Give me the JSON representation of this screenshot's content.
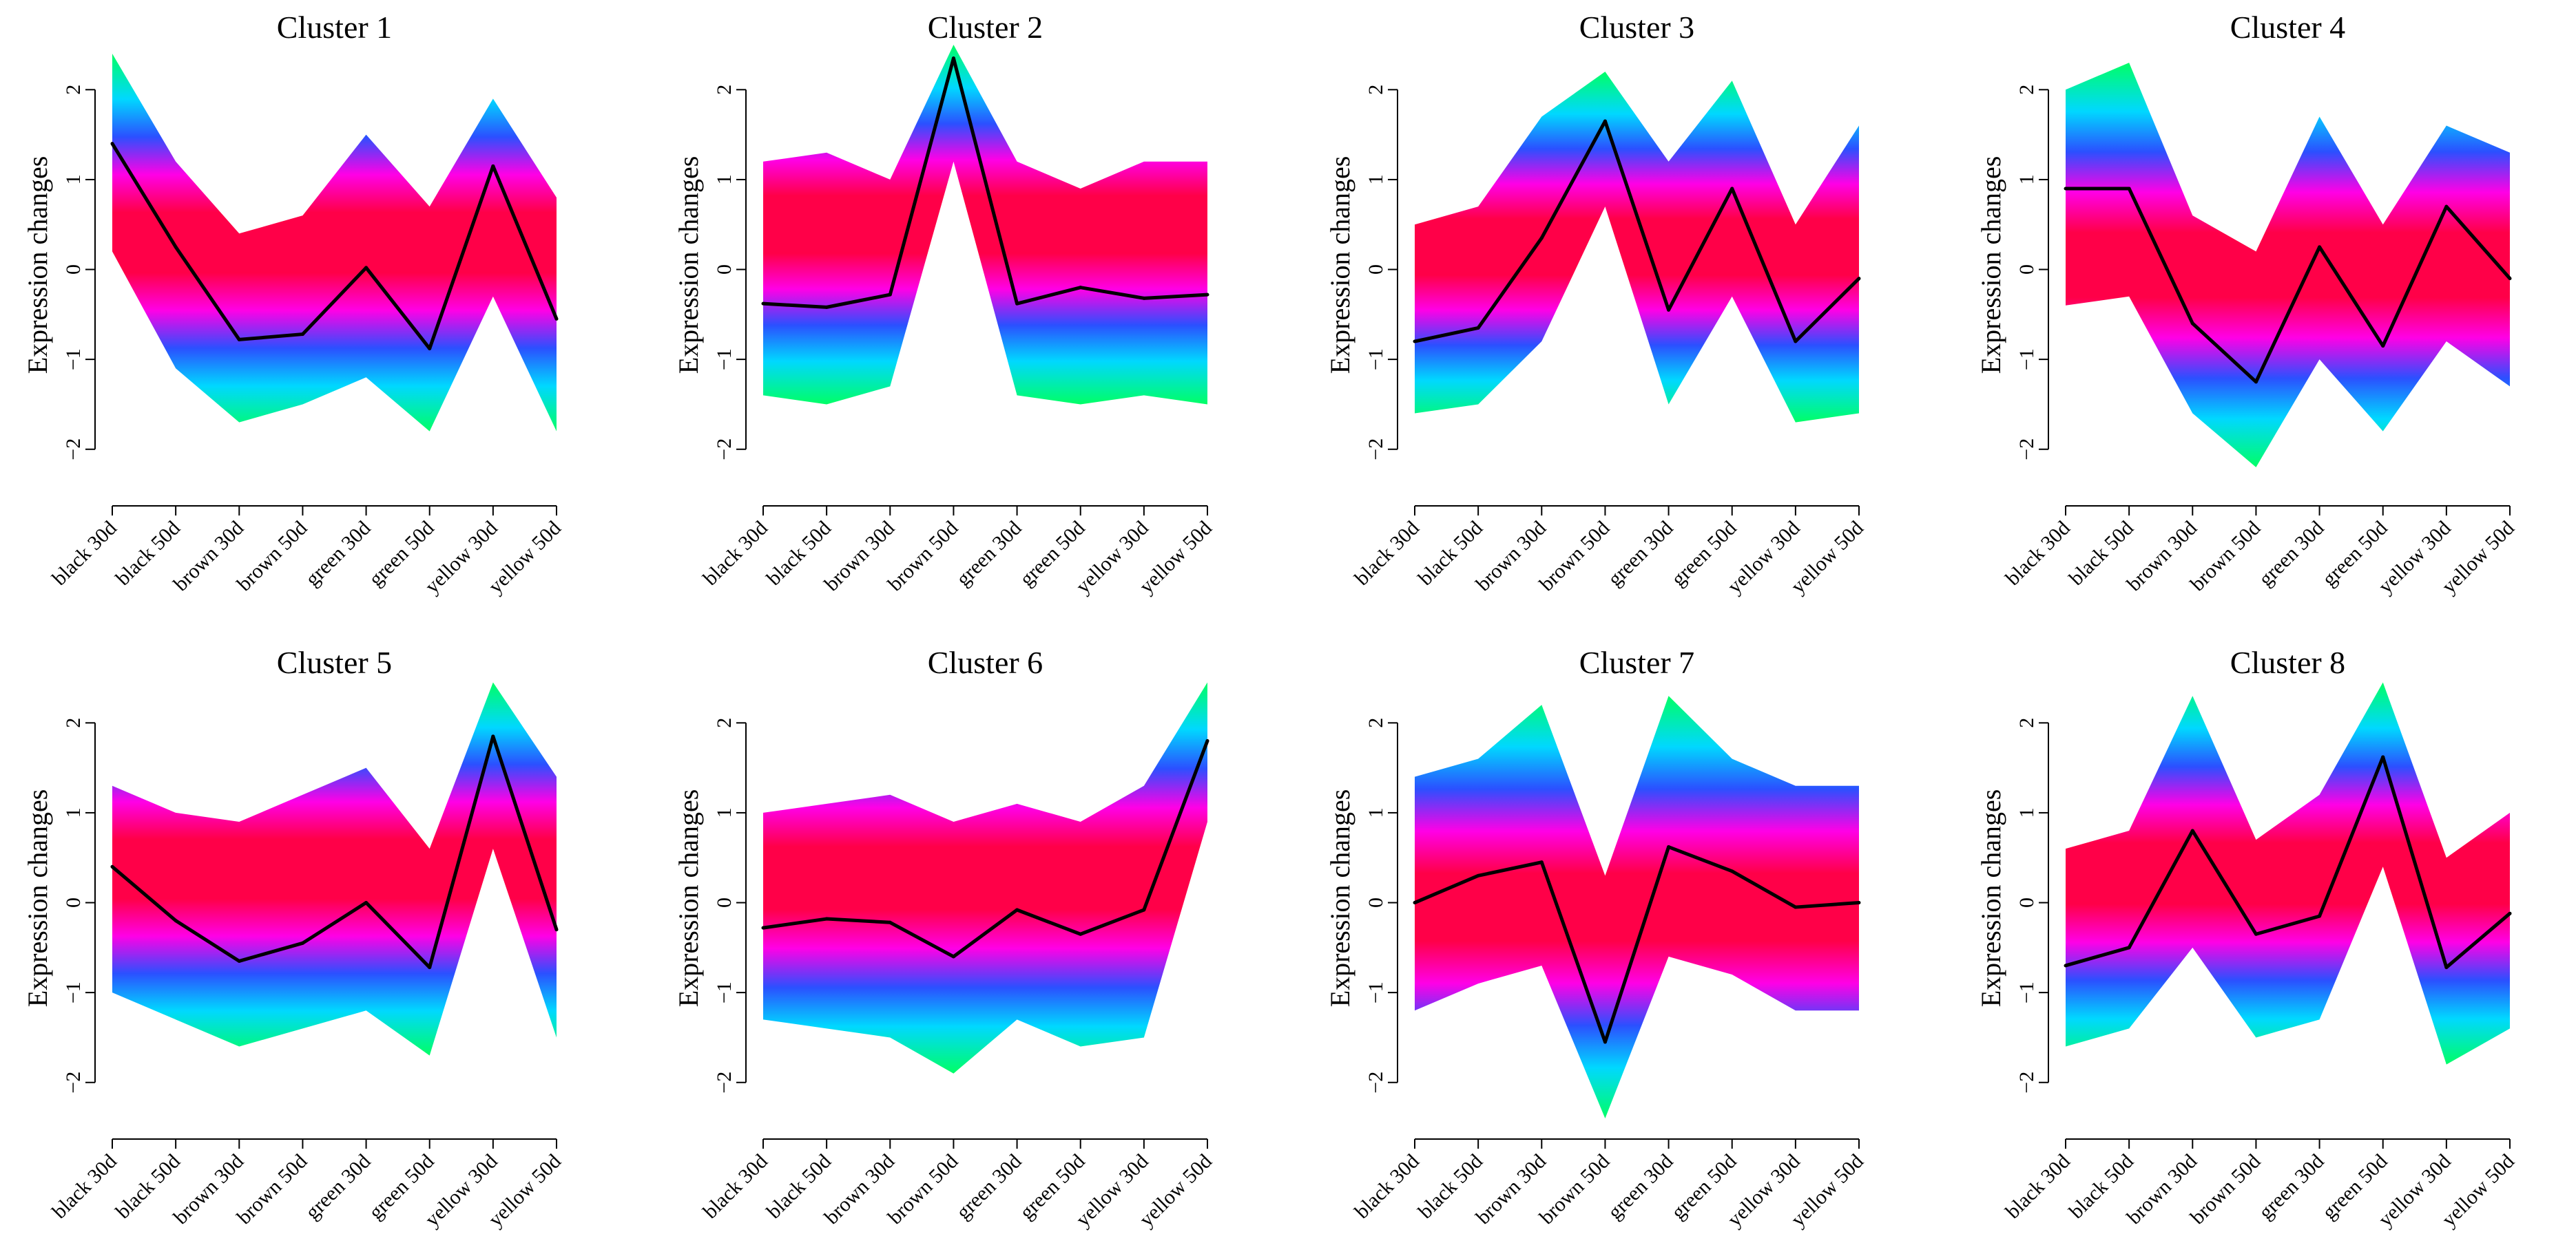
{
  "chart_data": [
    {
      "type": "line",
      "title": "Cluster 1",
      "ylabel": "Expression changes",
      "categories": [
        "black 30d",
        "black 50d",
        "brown 30d",
        "brown 50d",
        "green 30d",
        "green 50d",
        "yellow 30d",
        "yellow 50d"
      ],
      "yticks": [
        "−2",
        "−1",
        "0",
        "1",
        "2"
      ],
      "ylim": [
        -2.4,
        2.5
      ],
      "series": [
        {
          "values": [
            1.4,
            0.25,
            -0.78,
            -0.72,
            0.02,
            -0.88,
            1.15,
            -0.55
          ]
        }
      ],
      "band": {
        "upper": [
          2.4,
          1.2,
          0.4,
          0.6,
          1.5,
          0.7,
          1.9,
          0.8
        ],
        "lower": [
          0.2,
          -1.1,
          -1.7,
          -1.5,
          -1.2,
          -1.8,
          -0.3,
          -1.8
        ]
      }
    },
    {
      "type": "line",
      "title": "Cluster 2",
      "ylabel": "Expression changes",
      "categories": [
        "black 30d",
        "black 50d",
        "brown 30d",
        "brown 50d",
        "green 30d",
        "green 50d",
        "yellow 30d",
        "yellow 50d"
      ],
      "yticks": [
        "−2",
        "−1",
        "0",
        "1",
        "2"
      ],
      "ylim": [
        -2.4,
        2.5
      ],
      "series": [
        {
          "values": [
            -0.38,
            -0.42,
            -0.28,
            2.35,
            -0.38,
            -0.2,
            -0.32,
            -0.28
          ]
        }
      ],
      "band": {
        "upper": [
          1.2,
          1.3,
          1.0,
          2.5,
          1.2,
          0.9,
          1.2,
          1.2
        ],
        "lower": [
          -1.4,
          -1.5,
          -1.3,
          1.2,
          -1.4,
          -1.5,
          -1.4,
          -1.5
        ]
      }
    },
    {
      "type": "line",
      "title": "Cluster 3",
      "ylabel": "Expression changes",
      "categories": [
        "black 30d",
        "black 50d",
        "brown 30d",
        "brown 50d",
        "green 30d",
        "green 50d",
        "yellow 30d",
        "yellow 50d"
      ],
      "yticks": [
        "−2",
        "−1",
        "0",
        "1",
        "2"
      ],
      "ylim": [
        -2.4,
        2.5
      ],
      "series": [
        {
          "values": [
            -0.8,
            -0.65,
            0.35,
            1.65,
            -0.45,
            0.9,
            -0.8,
            -0.1
          ]
        }
      ],
      "band": {
        "upper": [
          0.5,
          0.7,
          1.7,
          2.2,
          1.2,
          2.1,
          0.5,
          1.6
        ],
        "lower": [
          -1.6,
          -1.5,
          -0.8,
          0.7,
          -1.5,
          -0.3,
          -1.7,
          -1.6
        ]
      }
    },
    {
      "type": "line",
      "title": "Cluster 4",
      "ylabel": "Expression changes",
      "categories": [
        "black 30d",
        "black 50d",
        "brown 30d",
        "brown 50d",
        "green 30d",
        "green 50d",
        "yellow 30d",
        "yellow 50d"
      ],
      "yticks": [
        "−2",
        "−1",
        "0",
        "1",
        "2"
      ],
      "ylim": [
        -2.4,
        2.5
      ],
      "series": [
        {
          "values": [
            0.9,
            0.9,
            -0.6,
            -1.25,
            0.25,
            -0.85,
            0.7,
            -0.1
          ]
        }
      ],
      "band": {
        "upper": [
          2.0,
          2.3,
          0.6,
          0.2,
          1.7,
          0.5,
          1.6,
          1.3
        ],
        "lower": [
          -0.4,
          -0.3,
          -1.6,
          -2.2,
          -1.0,
          -1.8,
          -0.8,
          -1.3
        ]
      }
    },
    {
      "type": "line",
      "title": "Cluster 5",
      "ylabel": "Expression changes",
      "categories": [
        "black 30d",
        "black 50d",
        "brown 30d",
        "brown 50d",
        "green 30d",
        "green 50d",
        "yellow 30d",
        "yellow 50d"
      ],
      "yticks": [
        "−2",
        "−1",
        "0",
        "1",
        "2"
      ],
      "ylim": [
        -2.4,
        2.5
      ],
      "series": [
        {
          "values": [
            0.4,
            -0.2,
            -0.65,
            -0.45,
            0.0,
            -0.72,
            1.85,
            -0.3
          ]
        }
      ],
      "band": {
        "upper": [
          1.3,
          1.0,
          0.9,
          1.2,
          1.5,
          0.6,
          2.45,
          1.4
        ],
        "lower": [
          -1.0,
          -1.3,
          -1.6,
          -1.4,
          -1.2,
          -1.7,
          0.6,
          -1.5
        ]
      }
    },
    {
      "type": "line",
      "title": "Cluster 6",
      "ylabel": "Expression changes",
      "categories": [
        "black 30d",
        "black 50d",
        "brown 30d",
        "brown 50d",
        "green 30d",
        "green 50d",
        "yellow 30d",
        "yellow 50d"
      ],
      "yticks": [
        "−2",
        "−1",
        "0",
        "1",
        "2"
      ],
      "ylim": [
        -2.4,
        2.5
      ],
      "series": [
        {
          "values": [
            -0.28,
            -0.18,
            -0.22,
            -0.6,
            -0.08,
            -0.35,
            -0.08,
            1.8
          ]
        }
      ],
      "band": {
        "upper": [
          1.0,
          1.1,
          1.2,
          0.9,
          1.1,
          0.9,
          1.3,
          2.45
        ],
        "lower": [
          -1.3,
          -1.4,
          -1.5,
          -1.9,
          -1.3,
          -1.6,
          -1.5,
          0.9
        ]
      }
    },
    {
      "type": "line",
      "title": "Cluster 7",
      "ylabel": "Expression changes",
      "categories": [
        "black 30d",
        "black 50d",
        "brown 30d",
        "brown 50d",
        "green 30d",
        "green 50d",
        "yellow 30d",
        "yellow 50d"
      ],
      "yticks": [
        "−2",
        "−1",
        "0",
        "1",
        "2"
      ],
      "ylim": [
        -2.4,
        2.5
      ],
      "series": [
        {
          "values": [
            0.0,
            0.3,
            0.45,
            -1.55,
            0.62,
            0.35,
            -0.05,
            0.0
          ]
        }
      ],
      "band": {
        "upper": [
          1.4,
          1.6,
          2.2,
          0.3,
          2.3,
          1.6,
          1.3,
          1.3
        ],
        "lower": [
          -1.2,
          -0.9,
          -0.7,
          -2.4,
          -0.6,
          -0.8,
          -1.2,
          -1.2
        ]
      }
    },
    {
      "type": "line",
      "title": "Cluster 8",
      "ylabel": "Expression changes",
      "categories": [
        "black 30d",
        "black 50d",
        "brown 30d",
        "brown 50d",
        "green 30d",
        "green 50d",
        "yellow 30d",
        "yellow 50d"
      ],
      "yticks": [
        "−2",
        "−1",
        "0",
        "1",
        "2"
      ],
      "ylim": [
        -2.4,
        2.5
      ],
      "series": [
        {
          "values": [
            -0.7,
            -0.5,
            0.8,
            -0.35,
            -0.15,
            1.62,
            -0.72,
            -0.12
          ]
        }
      ],
      "band": {
        "upper": [
          0.6,
          0.8,
          2.3,
          0.7,
          1.2,
          2.45,
          0.5,
          1.0
        ],
        "lower": [
          -1.6,
          -1.4,
          -0.5,
          -1.5,
          -1.3,
          0.4,
          -1.8,
          -1.4
        ]
      }
    }
  ]
}
